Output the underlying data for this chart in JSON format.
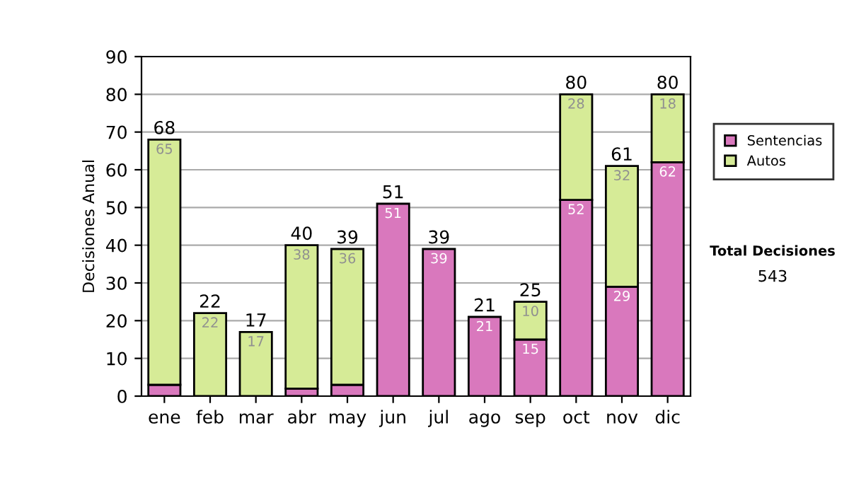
{
  "chart_data": {
    "type": "bar",
    "stacked": true,
    "ylabel": "Decisiones Anual",
    "categories": [
      "ene",
      "feb",
      "mar",
      "abr",
      "may",
      "jun",
      "jul",
      "ago",
      "sep",
      "oct",
      "nov",
      "dic"
    ],
    "series": [
      {
        "name": "Sentencias",
        "color": "#d978bd",
        "values": [
          3,
          null,
          null,
          2,
          3,
          51,
          39,
          21,
          15,
          52,
          29,
          62
        ],
        "value_labels": [
          null,
          null,
          null,
          null,
          null,
          "51",
          "39",
          "21",
          "15",
          "52",
          "29",
          "62"
        ]
      },
      {
        "name": "Autos",
        "color": "#d6eb97",
        "values": [
          65,
          22,
          17,
          38,
          36,
          null,
          null,
          null,
          10,
          28,
          32,
          18
        ],
        "value_labels": [
          "65",
          "22",
          "17",
          "38",
          "36",
          null,
          null,
          null,
          "10",
          "28",
          "32",
          "18"
        ]
      }
    ],
    "totals": [
      "68",
      "22",
      "17",
      "40",
      "39",
      "51",
      "39",
      "21",
      "25",
      "80",
      "61",
      "80"
    ],
    "ylim": [
      0,
      90
    ],
    "yticks": [
      0,
      10,
      20,
      30,
      40,
      50,
      60,
      70,
      80,
      90
    ],
    "grid": "y",
    "legend": "right",
    "annotations": [
      "Total Decisiones",
      "543"
    ]
  }
}
